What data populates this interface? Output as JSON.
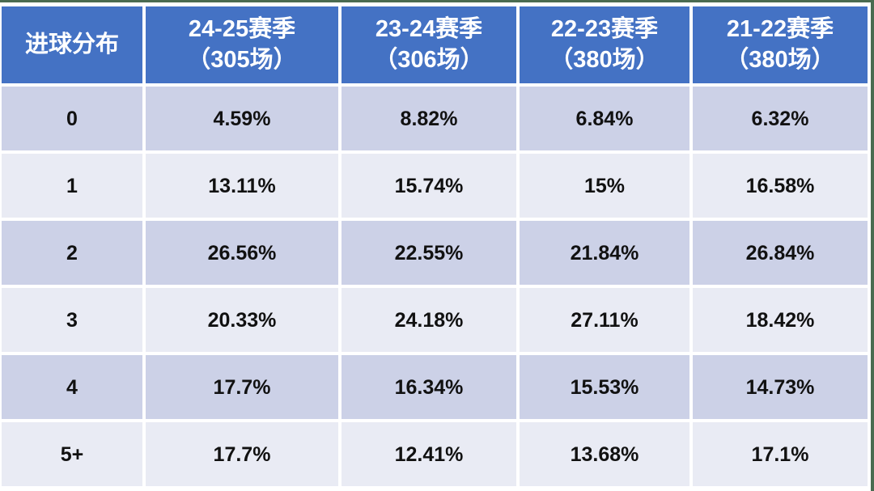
{
  "page": {
    "background": "#ffffff",
    "edge_line_color": "#4a6b50"
  },
  "table": {
    "header": {
      "bg": "#4472c4",
      "text_color": "#ffffff",
      "corner_label": "进球分布",
      "columns": [
        {
          "line1": "24-25赛季",
          "line2": "（305场）"
        },
        {
          "line1": "23-24赛季",
          "line2": "（306场）"
        },
        {
          "line1": "22-23赛季",
          "line2": "（380场）"
        },
        {
          "line1": "21-22赛季",
          "line2": "（380场）"
        }
      ]
    },
    "band_colors": {
      "dark": "#ccd1e7",
      "light": "#e9ebf4"
    },
    "rows": [
      {
        "label": "0",
        "values": [
          "4.59%",
          "8.82%",
          "6.84%",
          "6.32%"
        ]
      },
      {
        "label": "1",
        "values": [
          "13.11%",
          "15.74%",
          "15%",
          "16.58%"
        ]
      },
      {
        "label": "2",
        "values": [
          "26.56%",
          "22.55%",
          "21.84%",
          "26.84%"
        ]
      },
      {
        "label": "3",
        "values": [
          "20.33%",
          "24.18%",
          "27.11%",
          "18.42%"
        ]
      },
      {
        "label": "4",
        "values": [
          "17.7%",
          "16.34%",
          "15.53%",
          "14.73%"
        ]
      },
      {
        "label": "5+",
        "values": [
          "17.7%",
          "12.41%",
          "13.68%",
          "17.1%"
        ]
      }
    ]
  },
  "chart_data": {
    "type": "table",
    "title": "进球分布",
    "xlabel": "进球分布",
    "unit": "%",
    "categories": [
      "0",
      "1",
      "2",
      "3",
      "4",
      "5+"
    ],
    "series": [
      {
        "name": "24-25赛季（305场）",
        "matches": 305,
        "values": [
          4.59,
          13.11,
          26.56,
          20.33,
          17.7,
          17.7
        ]
      },
      {
        "name": "23-24赛季（306场）",
        "matches": 306,
        "values": [
          8.82,
          15.74,
          22.55,
          24.18,
          16.34,
          12.41
        ]
      },
      {
        "name": "22-23赛季（380场）",
        "matches": 380,
        "values": [
          6.84,
          15.0,
          21.84,
          27.11,
          15.53,
          13.68
        ]
      },
      {
        "name": "21-22赛季（380场）",
        "matches": 380,
        "values": [
          6.32,
          16.58,
          26.84,
          18.42,
          14.73,
          17.1
        ]
      }
    ]
  }
}
